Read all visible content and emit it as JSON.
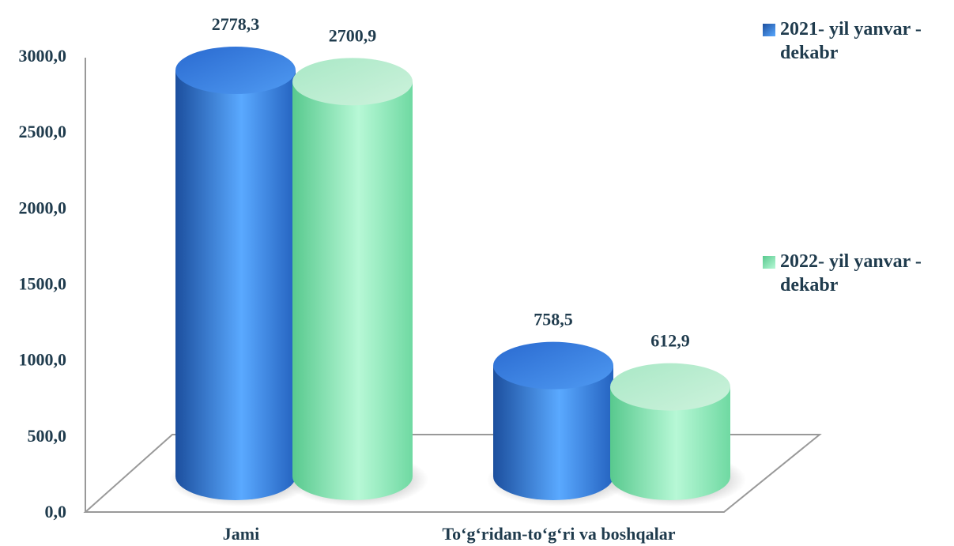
{
  "chart_data": {
    "type": "bar",
    "categories": [
      "Jami",
      "To‘g‘ridan-to‘g‘ri va boshqalar"
    ],
    "series": [
      {
        "name": "2021- yil yanvar - dekabr",
        "color": "#3b82e0",
        "values": [
          2778.3,
          758.5
        ],
        "value_labels": [
          "2778,3",
          "758,5"
        ]
      },
      {
        "name": "2022- yil yanvar - dekabr",
        "color": "#8ee8b8",
        "values": [
          2700.9,
          612.9
        ],
        "value_labels": [
          "2700,9",
          "612,9"
        ]
      }
    ],
    "ylim": [
      0,
      3000
    ],
    "yticks": [
      {
        "value": 0,
        "label": "0,0"
      },
      {
        "value": 500,
        "label": "500,0"
      },
      {
        "value": 1000,
        "label": "1000,0"
      },
      {
        "value": 1500,
        "label": "1500,0"
      },
      {
        "value": 2000,
        "label": "2000,0"
      },
      {
        "value": 2500,
        "label": "2500,0"
      },
      {
        "value": 3000,
        "label": "3000,0"
      }
    ],
    "grid": false
  }
}
